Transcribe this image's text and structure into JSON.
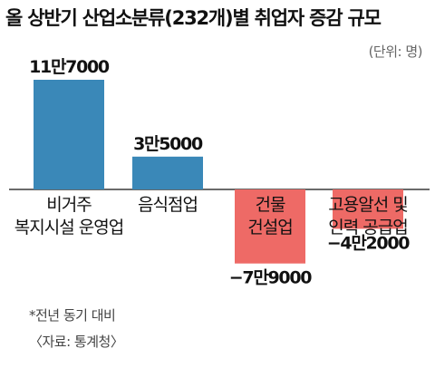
{
  "chart_data": {
    "type": "bar",
    "title": "올 상반기 산업소분류(232개)별 취업자 증감 규모",
    "unit": "(단위: 명)",
    "categories": [
      [
        "비거주",
        "복지시설 운영업"
      ],
      [
        "음식점업"
      ],
      [
        "건물",
        "건설업"
      ],
      [
        "고용알선 및",
        "인력 공급업"
      ]
    ],
    "values": [
      117000,
      35000,
      -79000,
      -42000
    ],
    "value_labels": [
      "11만7000",
      "3만5000",
      "−7만9000",
      "−4만2000"
    ],
    "colors": {
      "positive": "#3a88b8",
      "negative": "#ee6a66"
    }
  },
  "footnotes": {
    "note": "*전년 동기 대비",
    "source": "〈자료: 통계청〉"
  }
}
